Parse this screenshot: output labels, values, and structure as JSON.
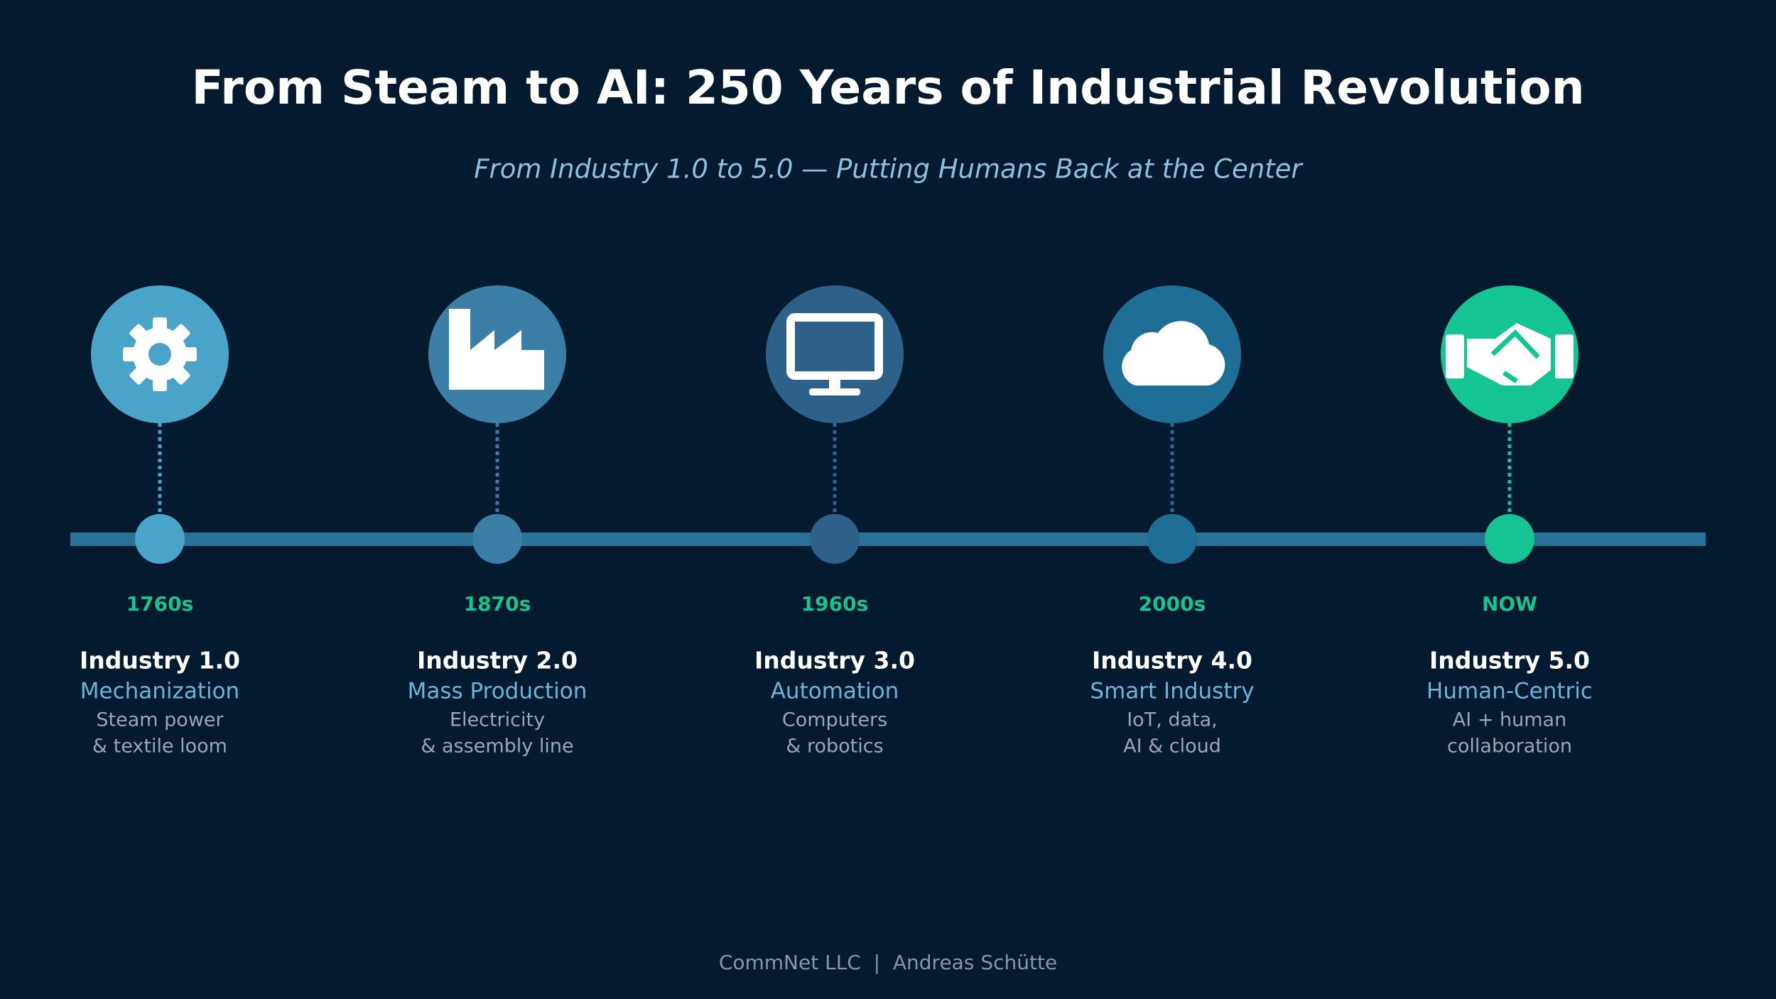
{
  "header": {
    "title": "From Steam to AI: 250 Years of Industrial Revolution",
    "subtitle": "From Industry 1.0 to 5.0 — Putting Humans Back at the Center"
  },
  "stages": [
    {
      "year": "1760s",
      "title": "Industry 1.0",
      "subtitle": "Mechanization",
      "description": [
        "Steam power",
        "& textile loom"
      ]
    },
    {
      "year": "1870s",
      "title": "Industry 2.0",
      "subtitle": "Mass Production",
      "description": [
        "Electricity",
        "& assembly line"
      ]
    },
    {
      "year": "1960s",
      "title": "Industry 3.0",
      "subtitle": "Automation",
      "description": [
        "Computers",
        "& robotics"
      ]
    },
    {
      "year": "2000s",
      "title": "Industry 4.0",
      "subtitle": "Smart Industry",
      "description": [
        "IoT, data,",
        "AI & cloud"
      ]
    },
    {
      "year": "NOW",
      "title": "Industry 5.0",
      "subtitle": "Human-Centric",
      "description": [
        "AI + human",
        "collaboration"
      ]
    }
  ],
  "footer": "CommNet LLC  |  Andreas Schütte"
}
